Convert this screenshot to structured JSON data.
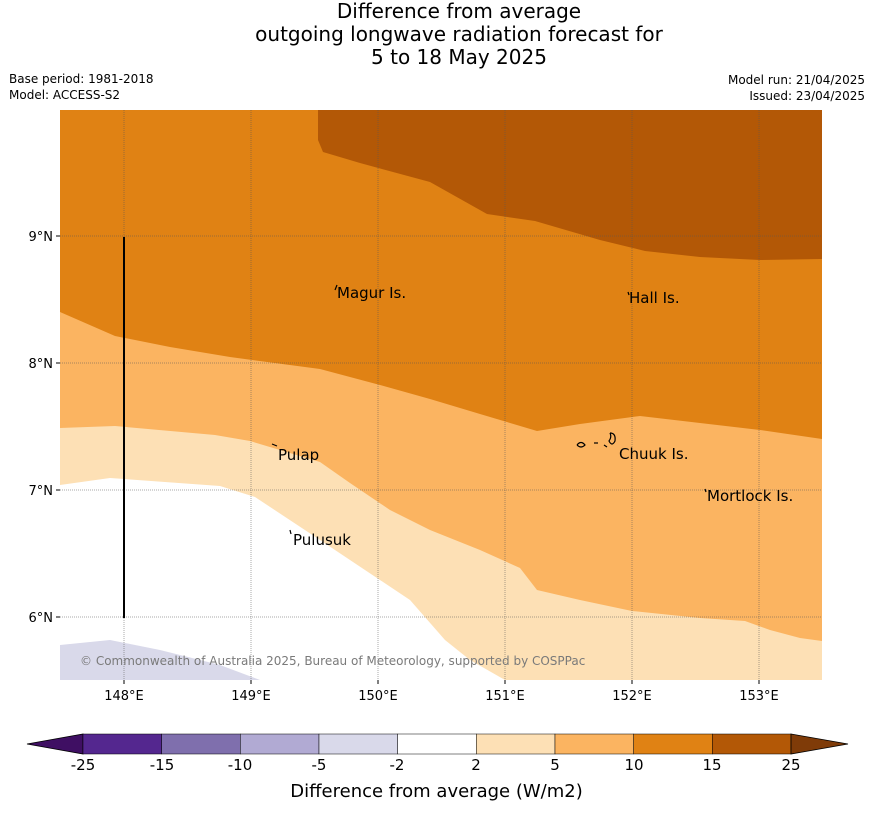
{
  "header": {
    "title_line1": "Difference from average",
    "title_line2": "outgoing longwave radiation forecast for",
    "title_line3": "5 to 18 May 2025",
    "base_period": "Base period: 1981-2018",
    "model": "Model: ACCESS-S2",
    "model_run": "Model run: 21/04/2025",
    "issued": "Issued: 23/04/2025"
  },
  "map": {
    "lon_ticks": [
      "148°E",
      "149°E",
      "150°E",
      "151°E",
      "152°E",
      "153°E"
    ],
    "lat_ticks": [
      "9°N",
      "8°N",
      "7°N",
      "6°N"
    ],
    "places": [
      "Magur Is.",
      "Hall Is.",
      "Pulap",
      "Chuuk Is.",
      "Mortlock Is.",
      "Pulusuk"
    ],
    "copyright": "© Commonwealth of Australia 2025, Bureau of Meteorology, supported by COSPPac"
  },
  "colorbar": {
    "title": "Difference from average (W/m2)",
    "labels": [
      "-25",
      "-15",
      "-10",
      "-5",
      "-2",
      "2",
      "5",
      "10",
      "15",
      "25"
    ],
    "colors": [
      "#3f0f63",
      "#54278f",
      "#7f6fad",
      "#b1aad3",
      "#d9d9ea",
      "#ffffff",
      "#fde0b5",
      "#fbb461",
      "#e08214",
      "#b35806",
      "#7f3b08"
    ]
  }
}
